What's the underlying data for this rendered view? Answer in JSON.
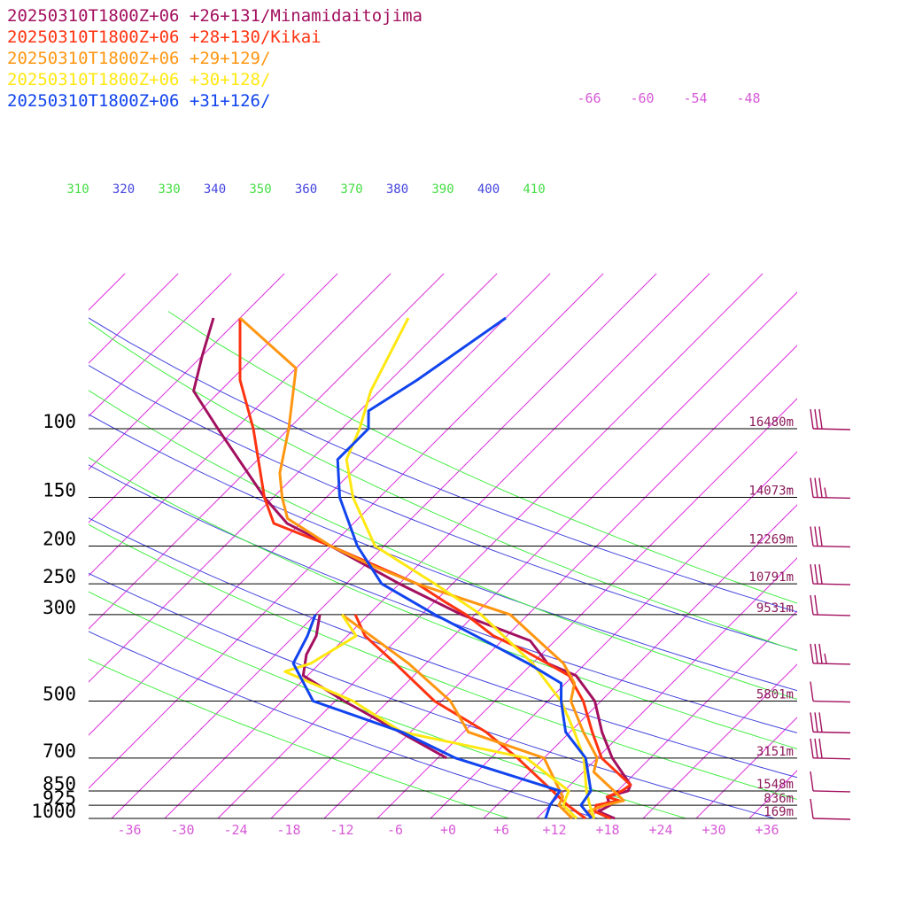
{
  "legend": [
    {
      "text": "20250310T1800Z+06 +26+131/Minamidaitojima",
      "color": "#a3105f"
    },
    {
      "text": "20250310T1800Z+06 +28+130/Kikai",
      "color": "#ff3311"
    },
    {
      "text": "20250310T1800Z+06 +29+129/",
      "color": "#ff9611"
    },
    {
      "text": "20250310T1800Z+06 +30+128/",
      "color": "#ffe811"
    },
    {
      "text": "20250310T1800Z+06 +31+126/",
      "color": "#1144ee"
    }
  ],
  "chart_data": {
    "type": "line",
    "y_scale": "log-pressure",
    "ylim_hpa": [
      1000,
      50
    ],
    "xlim_c": [
      -40,
      40
    ],
    "pressure_levels": [
      {
        "p": 100,
        "label": "100",
        "height": "16480m"
      },
      {
        "p": 150,
        "label": "150",
        "height": "14073m"
      },
      {
        "p": 200,
        "label": "200",
        "height": "12269m"
      },
      {
        "p": 250,
        "label": "250",
        "height": "10791m"
      },
      {
        "p": 300,
        "label": "300",
        "height": "9531m"
      },
      {
        "p": 500,
        "label": "500",
        "height": "5801m"
      },
      {
        "p": 700,
        "label": "700",
        "height": "3151m"
      },
      {
        "p": 850,
        "label": "850",
        "height": "1548m"
      },
      {
        "p": 925,
        "label": "925",
        "height": "836m"
      },
      {
        "p": 1000,
        "label": "1000",
        "height": "169m"
      }
    ],
    "temperature_ticks": [
      {
        "v": -36,
        "label": "-36"
      },
      {
        "v": -30,
        "label": "-30"
      },
      {
        "v": -24,
        "label": "-24"
      },
      {
        "v": -18,
        "label": "-18"
      },
      {
        "v": -12,
        "label": "-12"
      },
      {
        "v": -6,
        "label": "-6"
      },
      {
        "v": 0,
        "label": "+0"
      },
      {
        "v": 6,
        "label": "+6"
      },
      {
        "v": 12,
        "label": "+12"
      },
      {
        "v": 18,
        "label": "+18"
      },
      {
        "v": 24,
        "label": "+24"
      },
      {
        "v": 30,
        "label": "+30"
      },
      {
        "v": 36,
        "label": "+36"
      }
    ],
    "top_temperature_labels": [
      "-66",
      "-60",
      "-54",
      "-48"
    ],
    "theta_labels": [
      {
        "text": "310",
        "color": "#44dd44"
      },
      {
        "text": "320",
        "color": "#4444dd"
      },
      {
        "text": "330",
        "color": "#44dd44"
      },
      {
        "text": "340",
        "color": "#4444dd"
      },
      {
        "text": "350",
        "color": "#44dd44"
      },
      {
        "text": "360",
        "color": "#4444dd"
      },
      {
        "text": "370",
        "color": "#44dd44"
      },
      {
        "text": "380",
        "color": "#4444dd"
      },
      {
        "text": "390",
        "color": "#44dd44"
      },
      {
        "text": "400",
        "color": "#4444dd"
      },
      {
        "text": "410",
        "color": "#44dd44"
      }
    ],
    "series": [
      {
        "name": "20250310T1800Z+06 +26+131/Minamidaitojima",
        "color": "#a3105f",
        "temperature": [
          [
            1000,
            18.8
          ],
          [
            960,
            16.2
          ],
          [
            925,
            16.8
          ],
          [
            880,
            15.5
          ],
          [
            850,
            17.2
          ],
          [
            820,
            16.8
          ],
          [
            700,
            11.7
          ],
          [
            600,
            7.6
          ],
          [
            500,
            3.3
          ],
          [
            430,
            -1.7
          ],
          [
            400,
            -6.3
          ],
          [
            350,
            -10.8
          ],
          [
            300,
            -21.5
          ],
          [
            250,
            -32
          ],
          [
            200,
            -44
          ],
          [
            175,
            -51.5
          ],
          [
            150,
            -57
          ],
          [
            100,
            -70
          ],
          [
            80,
            -77
          ],
          [
            65,
            -80
          ],
          [
            52,
            -83
          ]
        ],
        "dewpoint": [
          [
            700,
            -7
          ],
          [
            500,
            -25
          ],
          [
            430,
            -32.5
          ],
          [
            380,
            -34.5
          ],
          [
            340,
            -35.5
          ],
          [
            300,
            -37.5
          ]
        ]
      },
      {
        "name": "20250310T1800Z+06 +28+130/Kikai",
        "color": "#ff3311",
        "temperature": [
          [
            1000,
            18.3
          ],
          [
            960,
            15.8
          ],
          [
            925,
            15.2
          ],
          [
            900,
            17.3
          ],
          [
            880,
            15.5
          ],
          [
            850,
            16.5
          ],
          [
            820,
            16.8
          ],
          [
            700,
            10.5
          ],
          [
            600,
            6.5
          ],
          [
            500,
            2
          ],
          [
            430,
            -2.5
          ],
          [
            370,
            -10.5
          ],
          [
            340,
            -15.5
          ],
          [
            300,
            -21
          ],
          [
            280,
            -24.5
          ],
          [
            250,
            -30
          ],
          [
            200,
            -44
          ],
          [
            175,
            -53
          ],
          [
            150,
            -57
          ],
          [
            100,
            -66
          ],
          [
            75,
            -73
          ],
          [
            52,
            -80
          ]
        ],
        "dewpoint": [
          [
            1000,
            15.5
          ],
          [
            925,
            12
          ],
          [
            700,
            1
          ],
          [
            600,
            -5.5
          ],
          [
            500,
            -14.8
          ],
          [
            400,
            -23.5
          ],
          [
            340,
            -30
          ],
          [
            300,
            -33.5
          ]
        ]
      },
      {
        "name": "20250310T1800Z+06 +29+129/",
        "color": "#ff9611",
        "temperature": [
          [
            1000,
            16.3
          ],
          [
            960,
            15
          ],
          [
            925,
            16.2
          ],
          [
            900,
            17.8
          ],
          [
            850,
            15.6
          ],
          [
            820,
            14.2
          ],
          [
            760,
            11.2
          ],
          [
            700,
            10
          ],
          [
            600,
            5.5
          ],
          [
            500,
            0.6
          ],
          [
            450,
            -1
          ],
          [
            400,
            -4.5
          ],
          [
            340,
            -11
          ],
          [
            300,
            -16
          ],
          [
            250,
            -30
          ],
          [
            225,
            -37
          ],
          [
            200,
            -44
          ],
          [
            170,
            -52
          ],
          [
            150,
            -55
          ],
          [
            130,
            -58
          ],
          [
            100,
            -62
          ],
          [
            70,
            -68
          ],
          [
            52,
            -80
          ]
        ],
        "dewpoint": [
          [
            1000,
            14
          ],
          [
            925,
            11
          ],
          [
            880,
            10.5
          ],
          [
            700,
            4
          ],
          [
            600,
            -7.5
          ],
          [
            500,
            -13
          ],
          [
            400,
            -22
          ],
          [
            300,
            -35
          ]
        ]
      },
      {
        "name": "20250310T1800Z+06 +30+128/",
        "color": "#ffe811",
        "temperature": [
          [
            1000,
            16.5
          ],
          [
            925,
            14.5
          ],
          [
            850,
            12.5
          ],
          [
            700,
            8.5
          ],
          [
            600,
            4.5
          ],
          [
            500,
            -0.5
          ],
          [
            400,
            -8
          ],
          [
            300,
            -19.3
          ],
          [
            250,
            -28
          ],
          [
            200,
            -39
          ],
          [
            150,
            -47
          ],
          [
            120,
            -52
          ],
          [
            100,
            -54
          ],
          [
            80,
            -57
          ],
          [
            52,
            -61
          ]
        ],
        "dewpoint": [
          [
            1000,
            14.5
          ],
          [
            925,
            11.5
          ],
          [
            850,
            10.5
          ],
          [
            700,
            2
          ],
          [
            600,
            -15
          ],
          [
            500,
            -24
          ],
          [
            420,
            -35
          ],
          [
            400,
            -33
          ],
          [
            340,
            -31
          ],
          [
            300,
            -35
          ]
        ]
      },
      {
        "name": "20250310T1800Z+06 +31+126/",
        "color": "#1144ee",
        "temperature": [
          [
            1000,
            16.2
          ],
          [
            925,
            13.5
          ],
          [
            850,
            13
          ],
          [
            700,
            8.7
          ],
          [
            600,
            3.5
          ],
          [
            500,
            -0.5
          ],
          [
            450,
            -2.5
          ],
          [
            400,
            -8.5
          ],
          [
            340,
            -17.5
          ],
          [
            300,
            -24.5
          ],
          [
            250,
            -34
          ],
          [
            200,
            -41
          ],
          [
            150,
            -48.5
          ],
          [
            120,
            -53
          ],
          [
            100,
            -53
          ],
          [
            90,
            -55
          ],
          [
            75,
            -53
          ],
          [
            52,
            -50
          ]
        ],
        "dewpoint": [
          [
            1000,
            11
          ],
          [
            925,
            10
          ],
          [
            850,
            9.5
          ],
          [
            700,
            -6
          ],
          [
            600,
            -15
          ],
          [
            500,
            -28.5
          ],
          [
            400,
            -35
          ],
          [
            340,
            -36.5
          ],
          [
            300,
            -38
          ]
        ]
      }
    ],
    "wind_barbs": [
      {
        "p": 100,
        "speed_kt": 30
      },
      {
        "p": 150,
        "speed_kt": 25
      },
      {
        "p": 200,
        "speed_kt": 30
      },
      {
        "p": 250,
        "speed_kt": 30
      },
      {
        "p": 300,
        "speed_kt": 20
      },
      {
        "p": 400,
        "speed_kt": 25
      },
      {
        "p": 500,
        "speed_kt": 10
      },
      {
        "p": 600,
        "speed_kt": 30
      },
      {
        "p": 700,
        "speed_kt": 30
      },
      {
        "p": 850,
        "speed_kt": 10
      },
      {
        "p": 1000,
        "speed_kt": 10
      }
    ],
    "colors": {
      "isotherm": "#dd33dd",
      "dry_adiabat": "#4444dd",
      "moist_adiabat": "#44ee44",
      "pressure_line": "#000000",
      "height_label": "#8b1a5a",
      "barb": "#a3105f"
    }
  }
}
